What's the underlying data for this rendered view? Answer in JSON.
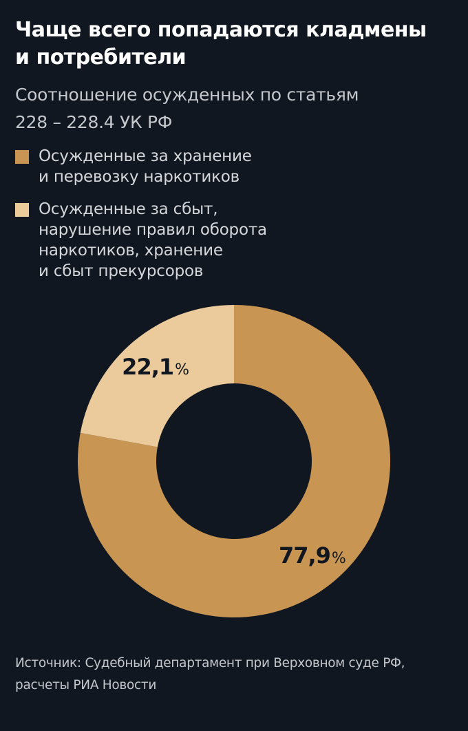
{
  "title": {
    "line1": "Чаще всего попадаются кладмены",
    "line2": "и потребители"
  },
  "subtitle": {
    "line1": "Соотношение осужденных по статьям",
    "line2": "228 – 228.4 УК РФ"
  },
  "legend": [
    {
      "color": "#C89652",
      "lines": [
        "Осужденные за хранение",
        "и перевозку наркотиков"
      ]
    },
    {
      "color": "#EBCA9B",
      "lines": [
        "Осужденные за сбыт,",
        "нарушение правил оборота",
        "наркотиков, хранение",
        "и сбыт прекурсоров"
      ]
    }
  ],
  "chart_data": {
    "type": "pie",
    "variant": "donut",
    "categories": [
      "Осужденные за хранение и перевозку наркотиков",
      "Осужденные за сбыт, нарушение правил оборота наркотиков, хранение и сбыт прекурсоров"
    ],
    "values": [
      77.9,
      22.1
    ],
    "labels": [
      "77,9",
      "22,1"
    ],
    "unit": "%",
    "colors": [
      "#C89652",
      "#EBCA9B"
    ]
  },
  "source": {
    "line1": "Источник: Судебный департамент при Верховном суде РФ,",
    "line2": "расчеты РИА Новости"
  },
  "background": "#111720"
}
